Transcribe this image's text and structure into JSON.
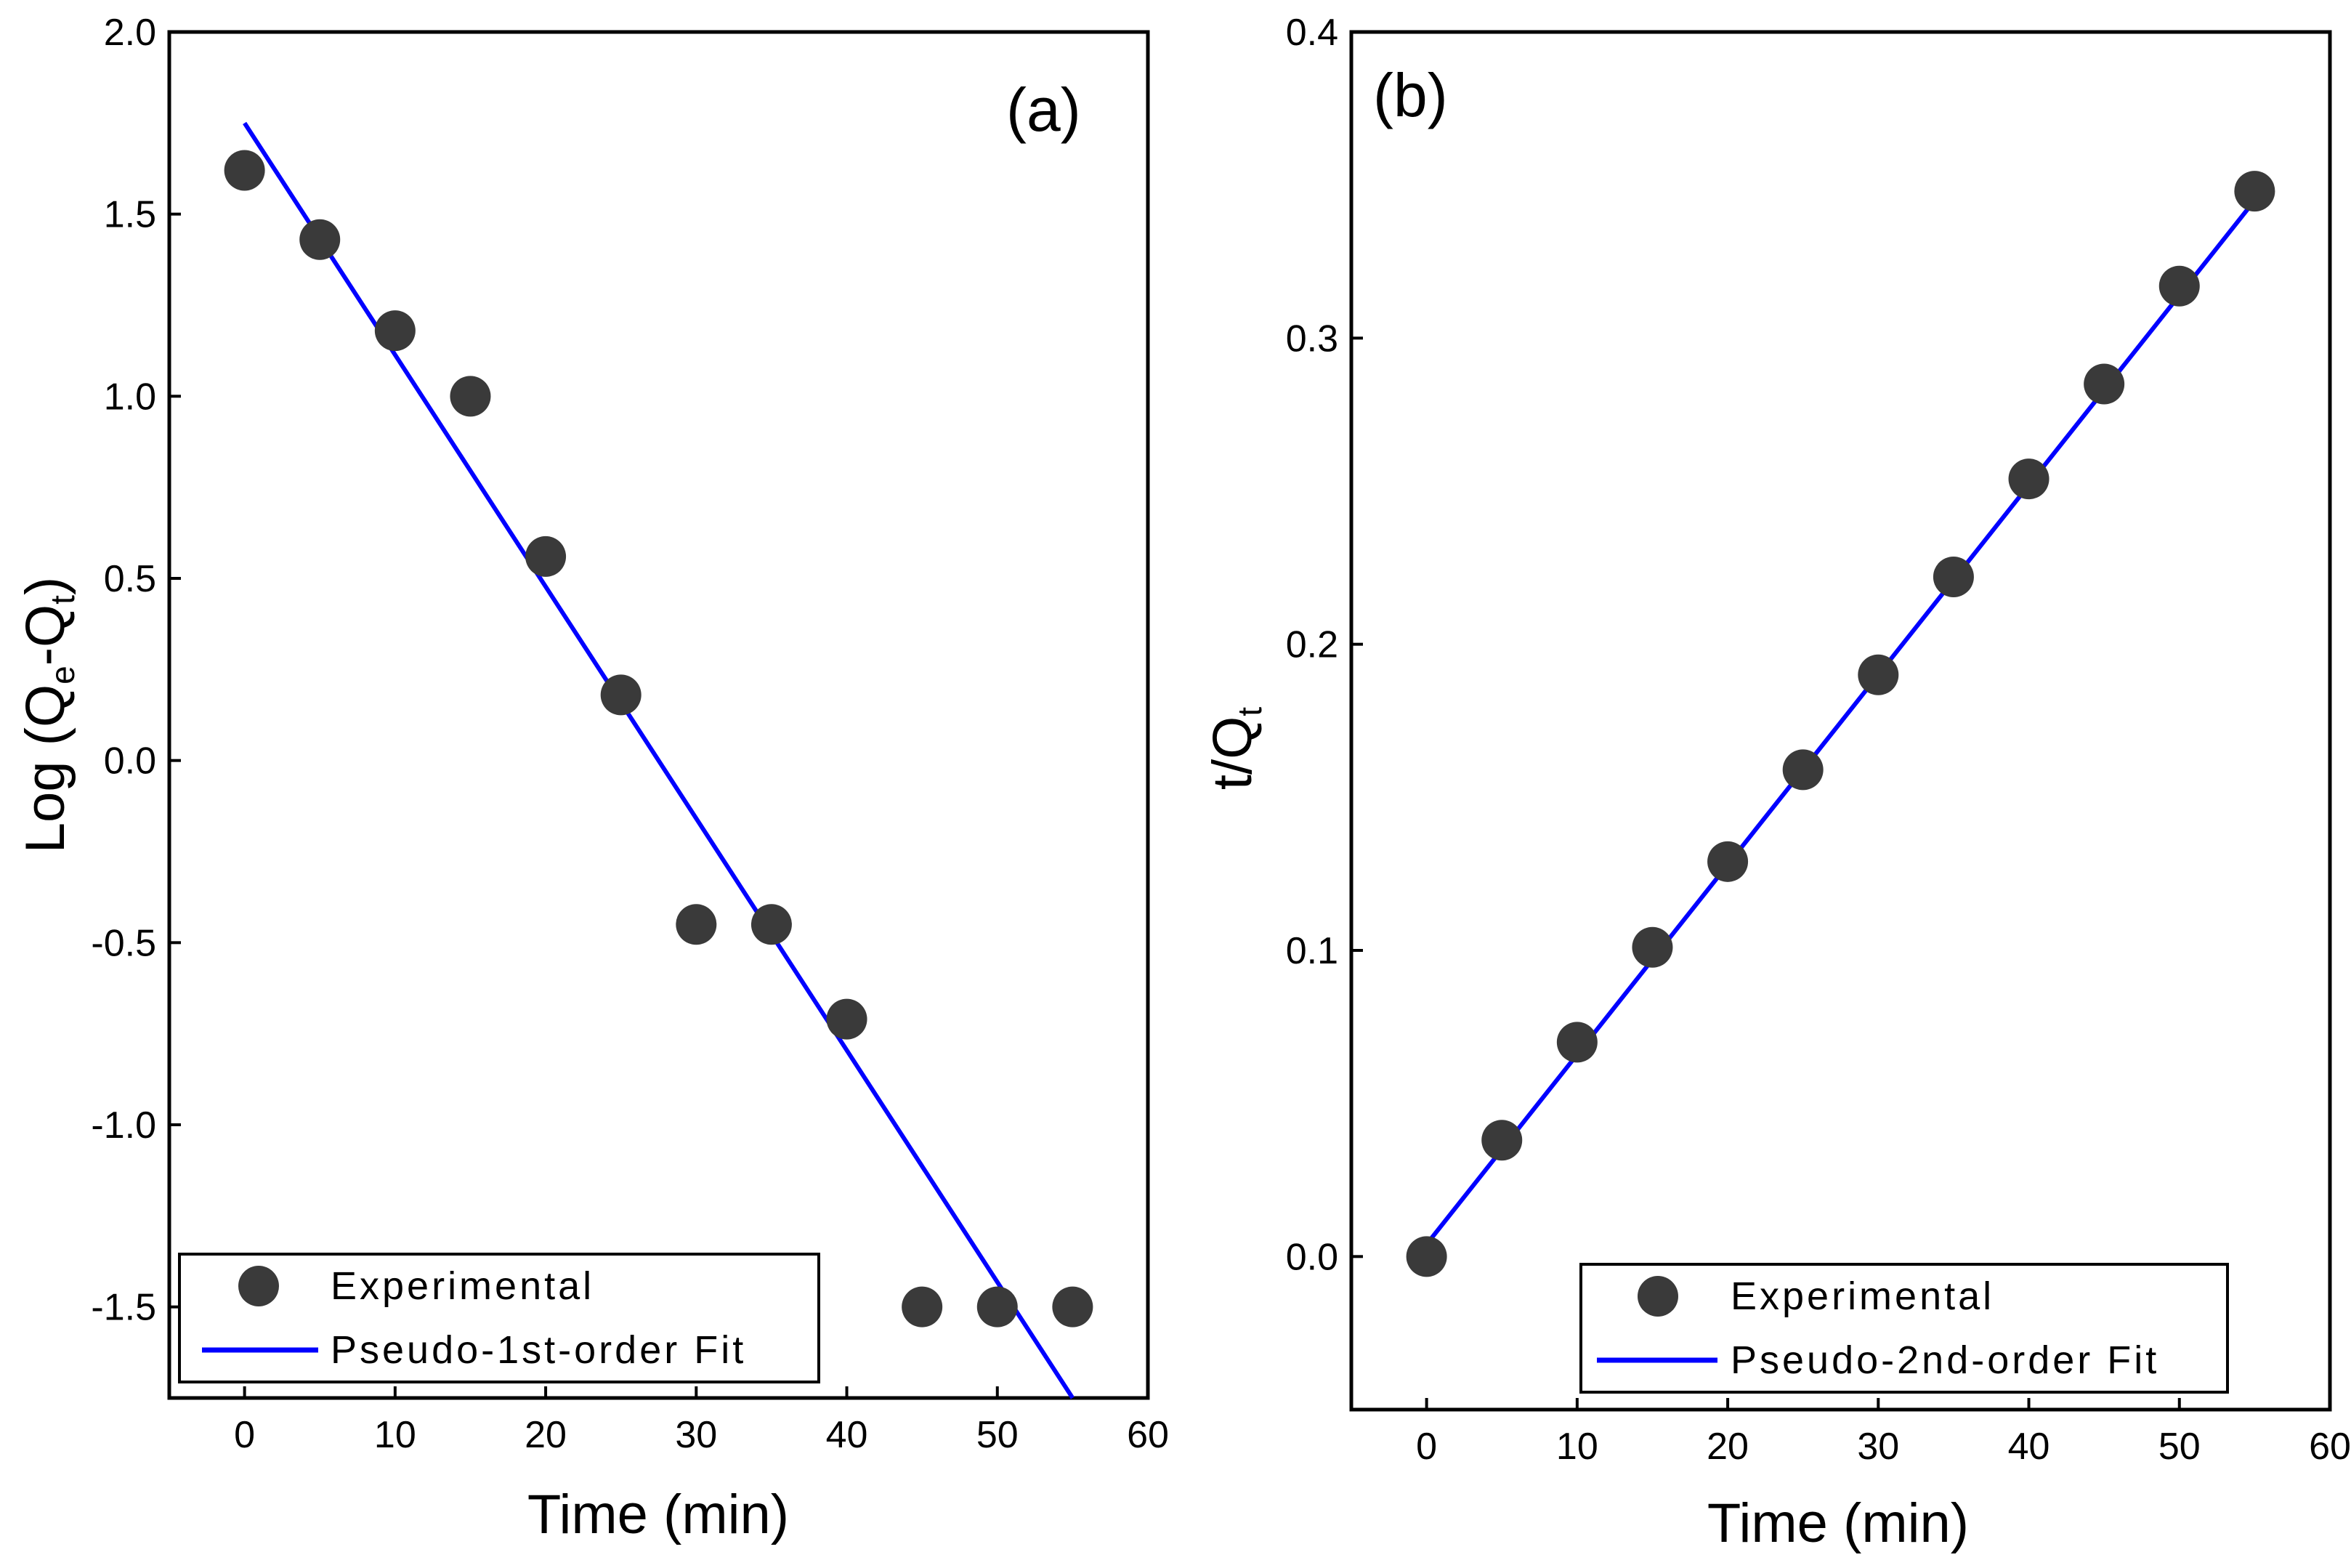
{
  "colors": {
    "marker": "#3a3a3a",
    "fit_line": "#0000ff",
    "frame": "#000000"
  },
  "panels": [
    {
      "id": "a",
      "panel_label": "(a)",
      "xlabel": "Time (min)",
      "ylabel": {
        "main": "Log (Q",
        "sub1": "e",
        "mid": "-Q",
        "sub2": "t",
        "end": ")"
      },
      "legend": {
        "points": "Experimental",
        "line": "Pseudo-1st-order Fit"
      }
    },
    {
      "id": "b",
      "panel_label": "(b)",
      "xlabel": "Time (min)",
      "ylabel": {
        "main": "t/Q",
        "sub1": "t"
      },
      "legend": {
        "points": "Experimental",
        "line": "Pseudo-2nd-order Fit"
      }
    }
  ],
  "chart_data": [
    {
      "type": "scatter",
      "title": "(a)",
      "xlabel": "Time (min)",
      "ylabel": "Log (Qe-Qt)",
      "xlim": [
        -5,
        60
      ],
      "ylim": [
        -1.75,
        2.0
      ],
      "xticks": [
        0,
        10,
        20,
        30,
        40,
        50,
        60
      ],
      "xtick_labels": [
        "0",
        "10",
        "20",
        "30",
        "40",
        "50",
        "60"
      ],
      "yticks": [
        -1.5,
        -1.0,
        -0.5,
        0.0,
        0.5,
        1.0,
        1.5,
        2.0
      ],
      "ytick_labels": [
        "-1.5",
        "-1.0",
        "-0.5",
        "0.0",
        "0.5",
        "1.0",
        "1.5",
        "2.0"
      ],
      "series": [
        {
          "name": "Experimental",
          "kind": "points",
          "x": [
            0,
            5,
            10,
            15,
            20,
            25,
            30,
            35,
            40,
            45,
            50,
            55
          ],
          "y": [
            1.62,
            1.43,
            1.18,
            1.0,
            0.56,
            0.18,
            -0.45,
            -0.45,
            -0.71,
            -1.5,
            -1.5,
            -1.5
          ]
        },
        {
          "name": "Pseudo-1st-order Fit",
          "kind": "line",
          "x": [
            0,
            55
          ],
          "y": [
            1.75,
            -1.75
          ]
        }
      ],
      "legend_position": "bottom-right",
      "grid": false
    },
    {
      "type": "scatter",
      "title": "(b)",
      "xlabel": "Time (min)",
      "ylabel": "t/Qt",
      "xlim": [
        -5,
        60
      ],
      "ylim": [
        -0.05,
        0.4
      ],
      "xticks": [
        0,
        10,
        20,
        30,
        40,
        50,
        60
      ],
      "xtick_labels": [
        "0",
        "10",
        "20",
        "30",
        "40",
        "50",
        "60"
      ],
      "yticks": [
        0.0,
        0.1,
        0.2,
        0.3,
        0.4
      ],
      "ytick_labels": [
        "0.0",
        "0.1",
        "0.2",
        "0.3",
        "0.4"
      ],
      "series": [
        {
          "name": "Experimental",
          "kind": "points",
          "x": [
            0,
            5,
            10,
            15,
            20,
            25,
            30,
            35,
            40,
            45,
            50,
            55
          ],
          "y": [
            0.0,
            0.038,
            0.07,
            0.101,
            0.129,
            0.159,
            0.19,
            0.222,
            0.254,
            0.285,
            0.317,
            0.348
          ]
        },
        {
          "name": "Pseudo-2nd-order Fit",
          "kind": "line",
          "x": [
            0,
            55
          ],
          "y": [
            0.004,
            0.345
          ]
        }
      ],
      "legend_position": "bottom-right",
      "grid": false
    }
  ]
}
